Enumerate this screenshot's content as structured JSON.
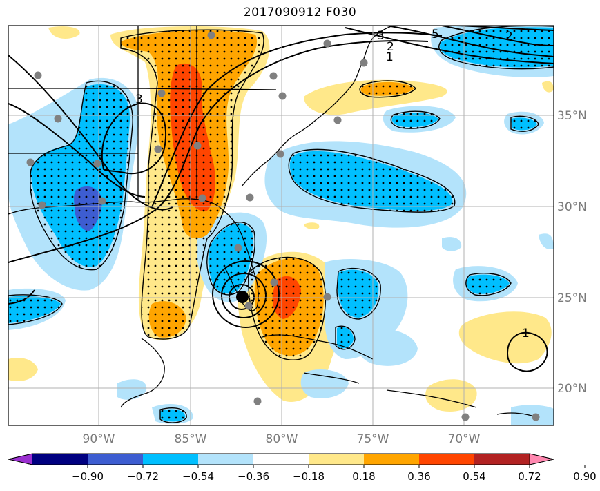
{
  "title": "2017090912 F030",
  "map": {
    "lon_labels": [
      "90°W",
      "85°W",
      "80°W",
      "75°W",
      "70°W"
    ],
    "lat_labels": [
      "35°N",
      "30°N",
      "25°N",
      "20°N"
    ],
    "contour_labels": [
      "3",
      "2",
      "1",
      "5",
      "2",
      "3",
      "1"
    ]
  },
  "colorbar": {
    "colors": [
      "#9b30d0",
      "#000080",
      "#3d5dd1",
      "#00bfff",
      "#b3e3fb",
      "#ffffff",
      "#ffe88a",
      "#ffa500",
      "#ff4500",
      "#b22222",
      "#ff88b0"
    ],
    "tick_labels": [
      "−0.90",
      "−0.72",
      "−0.54",
      "−0.36",
      "−0.18",
      "0.18",
      "0.36",
      "0.54",
      "0.72",
      "0.90"
    ]
  },
  "colors": {
    "light_blue": "#b3e3fb",
    "blue": "#00bfff",
    "royal_blue": "#3d5dd1",
    "light_yellow": "#ffe88a",
    "orange": "#ffa500",
    "red_orange": "#ff4500",
    "station_marker": "#808080",
    "storm_center": "#000000"
  }
}
